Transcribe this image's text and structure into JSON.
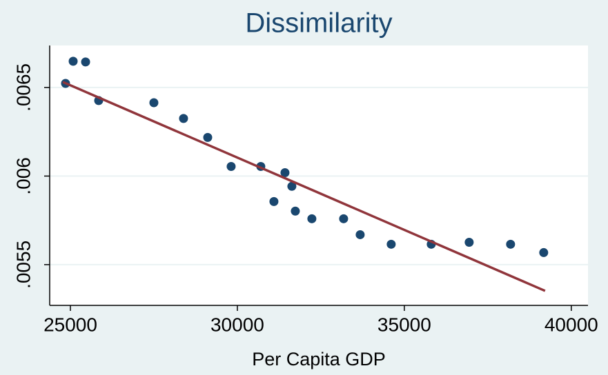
{
  "chart_data": {
    "type": "scatter",
    "title": "Dissimilarity",
    "x_label": "Per Capita GDP",
    "xlim": [
      24380,
      40500
    ],
    "ylim": [
      0.00527,
      0.006737
    ],
    "xticks": [
      25000,
      30000,
      35000,
      40000
    ],
    "yticks": [
      {
        "value": 0.0055,
        "label": ".0055"
      },
      {
        "value": 0.006,
        "label": ".006"
      },
      {
        "value": 0.0065,
        "label": ".0065"
      }
    ],
    "grid": true,
    "series": [
      {
        "type": "scatter",
        "color": "#1a476f",
        "x": [
          24855,
          25083,
          25455,
          25847,
          27500,
          28388,
          29112,
          29814,
          30702,
          31426,
          31632,
          31095,
          31736,
          32231,
          33182,
          33678,
          34607,
          35806,
          36942,
          38182,
          39174
        ],
        "values": [
          0.006523,
          0.006648,
          0.006644,
          0.006426,
          0.006414,
          0.006325,
          0.006218,
          0.006054,
          0.006054,
          0.006019,
          0.005942,
          0.005856,
          0.005802,
          0.005759,
          0.005759,
          0.005669,
          0.005615,
          0.005615,
          0.005626,
          0.005615,
          0.005568
        ]
      },
      {
        "type": "line",
        "color": "#90353b",
        "x": [
          24773,
          39215
        ],
        "values": [
          0.006531,
          0.005352
        ]
      }
    ]
  }
}
